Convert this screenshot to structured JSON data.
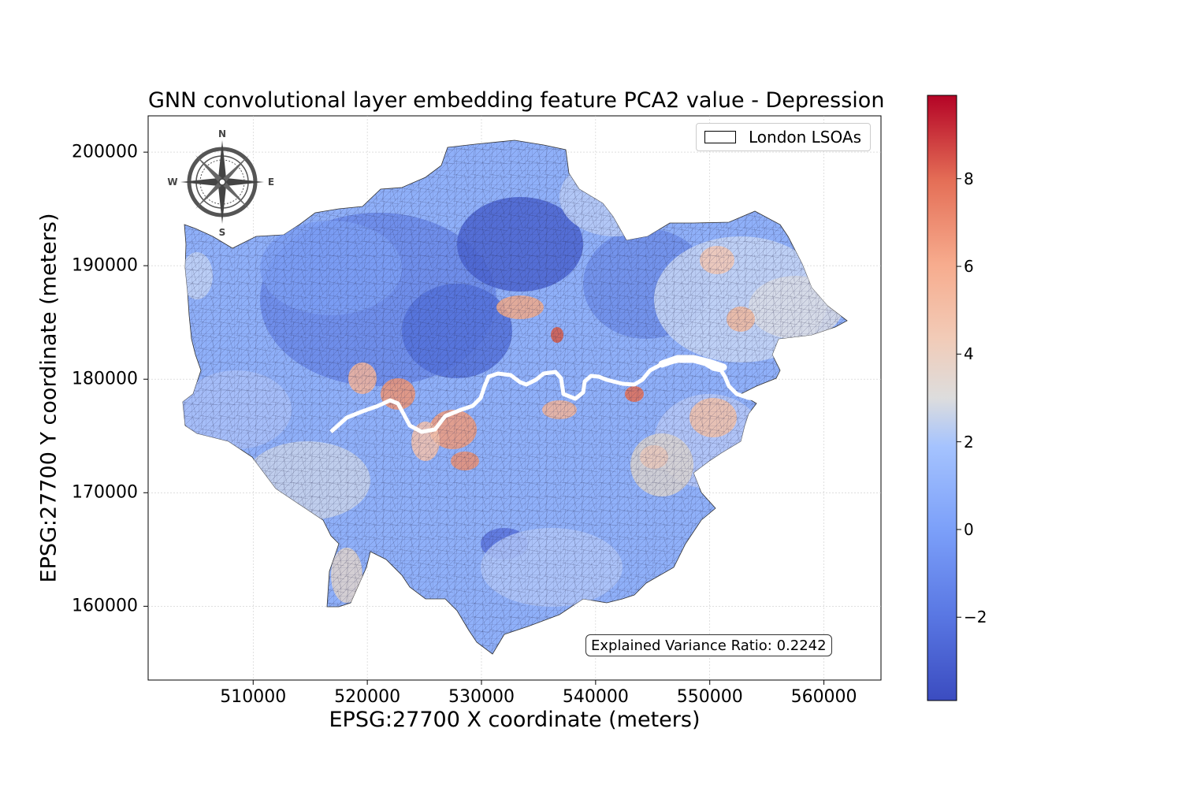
{
  "figure": {
    "title": "GNN convolutional layer embedding feature PCA2 value - Depression",
    "xlabel": "EPSG:27700 X coordinate (meters)",
    "ylabel": "EPSG:27700 Y coordinate (meters)"
  },
  "axes": {
    "x_ticks": [
      "510000",
      "520000",
      "530000",
      "540000",
      "550000",
      "560000"
    ],
    "y_ticks": [
      "200000",
      "190000",
      "180000",
      "170000",
      "160000"
    ],
    "xlim": [
      500800,
      565000
    ],
    "ylim": [
      153500,
      203200
    ],
    "grid": true
  },
  "legend": {
    "label": "London LSOAs",
    "placement": "top-right"
  },
  "annotation": {
    "text": "Explained Variance Ratio: 0.2242"
  },
  "compass": {
    "north": "N",
    "south": "S",
    "east": "E",
    "west": "W"
  },
  "colorbar": {
    "colormap": "coolwarm",
    "vmin": -3.9,
    "vmax": 9.9,
    "ticks": [
      "8",
      "6",
      "4",
      "2",
      "0",
      "−2"
    ],
    "low_color": "#3b4cc0",
    "mid_color": "#dddddd",
    "high_color": "#b40426"
  },
  "map_layers": {
    "river": "River Thames",
    "boundary": "London LSOAs",
    "hotspot_color": "#b40426",
    "river_color": "#ffffff"
  }
}
